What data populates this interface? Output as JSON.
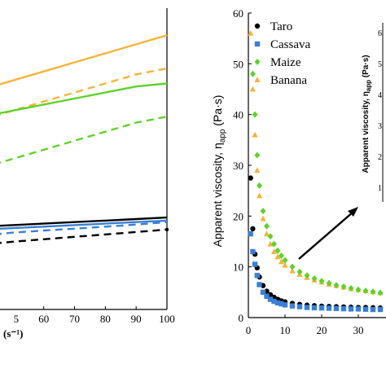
{
  "colors": {
    "taro": "#000000",
    "cassava": "#3a7fd5",
    "maize": "#5fd22a",
    "banana": "#f5b43a"
  },
  "chart_data": [
    {
      "type": "line",
      "panel": "left",
      "x": [
        40,
        50,
        60,
        70,
        80,
        90,
        100
      ],
      "xlim": [
        45,
        100
      ],
      "x_tick_labels": [
        "60",
        "70",
        "80",
        "90",
        "100"
      ],
      "xlabel_fragment": "(s⁻¹)",
      "x_tick_partial": "5",
      "series": [
        {
          "color": "banana",
          "style": "solid",
          "y": [
            0.73,
            0.76,
            0.79,
            0.82,
            0.85,
            0.88,
            0.91
          ]
        },
        {
          "color": "banana",
          "style": "dashed",
          "y": [
            0.63,
            0.66,
            0.69,
            0.72,
            0.75,
            0.78,
            0.8
          ]
        },
        {
          "color": "maize",
          "style": "solid",
          "y": [
            0.64,
            0.66,
            0.68,
            0.7,
            0.72,
            0.74,
            0.75
          ]
        },
        {
          "color": "maize",
          "style": "dashed",
          "y": [
            0.47,
            0.5,
            0.53,
            0.56,
            0.59,
            0.62,
            0.64
          ]
        },
        {
          "color": "taro",
          "style": "solid",
          "y": [
            0.275,
            0.28,
            0.285,
            0.29,
            0.295,
            0.3,
            0.305
          ]
        },
        {
          "color": "cassava",
          "style": "solid",
          "y": [
            0.265,
            0.27,
            0.275,
            0.28,
            0.285,
            0.29,
            0.295
          ]
        },
        {
          "color": "cassava",
          "style": "dashed",
          "y": [
            0.245,
            0.255,
            0.262,
            0.268,
            0.275,
            0.282,
            0.29
          ]
        },
        {
          "color": "taro",
          "style": "dashed",
          "y": [
            0.215,
            0.225,
            0.233,
            0.241,
            0.249,
            0.257,
            0.265
          ]
        }
      ]
    },
    {
      "type": "scatter",
      "panel": "right",
      "ylabel": "Apparent viscosity, η",
      "ylabel_sub": "app",
      "ylabel_unit": "(Pa·s)",
      "ylim": [
        0,
        60
      ],
      "y_ticks": [
        "0",
        "10",
        "20",
        "30",
        "40",
        "50",
        "60"
      ],
      "xlim": [
        0,
        38
      ],
      "x_ticks": [
        "0",
        "10",
        "20",
        "30"
      ],
      "legend": [
        "Taro",
        "Cassava",
        "Maize",
        "Banana"
      ],
      "legend_position": "top-right",
      "series": [
        {
          "name": "Taro",
          "marker": "circle",
          "color": "taro",
          "x": [
            0.6,
            1.2,
            1.8,
            2.4,
            3,
            4,
            5,
            6,
            7,
            8,
            9,
            10,
            12,
            14,
            16,
            18,
            20,
            22,
            24,
            26,
            28,
            30,
            32,
            34,
            36
          ],
          "y": [
            27.5,
            17.5,
            12.5,
            9.8,
            8,
            6.3,
            5.2,
            4.5,
            4,
            3.6,
            3.3,
            3.1,
            2.8,
            2.6,
            2.45,
            2.35,
            2.25,
            2.2,
            2.15,
            2.1,
            2.05,
            2.0,
            2.0,
            1.95,
            1.9
          ]
        },
        {
          "name": "Cassava",
          "marker": "square",
          "color": "cassava",
          "x": [
            0.6,
            1.2,
            1.8,
            2.4,
            3,
            4,
            5,
            6,
            7,
            8,
            9,
            10,
            12,
            14,
            16,
            18,
            20,
            22,
            24,
            26,
            28,
            30,
            32,
            34,
            36
          ],
          "y": [
            16.5,
            13,
            10.5,
            8.3,
            6.5,
            5,
            4.2,
            3.6,
            3.2,
            2.9,
            2.7,
            2.5,
            2.3,
            2.15,
            2.0,
            1.95,
            1.9,
            1.85,
            1.8,
            1.75,
            1.7,
            1.7,
            1.65,
            1.6,
            1.6
          ]
        },
        {
          "name": "Maize",
          "marker": "diamond",
          "color": "maize",
          "x": [
            1.2,
            1.8,
            2.4,
            3,
            4,
            5,
            6,
            7,
            8,
            9,
            10,
            12,
            14,
            16,
            18,
            20,
            22,
            24,
            26,
            28,
            30,
            32,
            34,
            36
          ],
          "y": [
            48,
            40,
            32,
            26,
            21,
            18,
            16,
            14.5,
            13.2,
            12.2,
            11.3,
            10,
            9,
            8.3,
            7.7,
            7.2,
            6.8,
            6.4,
            6.1,
            5.8,
            5.5,
            5.3,
            5.1,
            4.9
          ]
        },
        {
          "name": "Banana",
          "marker": "triangle",
          "color": "banana",
          "x": [
            0.6,
            1.2,
            1.8,
            2.4,
            3,
            4,
            5,
            6,
            7,
            8,
            9,
            10,
            12,
            14,
            16,
            18,
            20,
            22,
            24,
            26,
            28,
            30,
            32,
            34,
            36
          ],
          "y": [
            56,
            45,
            36,
            29,
            24,
            19.5,
            16.5,
            14.5,
            13,
            12,
            11,
            10.3,
            9.2,
            8.5,
            7.9,
            7.4,
            7.0,
            6.6,
            6.3,
            6.0,
            5.7,
            5.5,
            5.3,
            5.1,
            4.9
          ]
        }
      ]
    }
  ],
  "inset": {
    "ylabel": "Apparent viscosity, η",
    "ylabel_sub": "app",
    "ylabel_unit": "(Pa·s)",
    "tick_labels": [
      "6",
      "5",
      "4",
      "3",
      "2",
      "1"
    ]
  }
}
